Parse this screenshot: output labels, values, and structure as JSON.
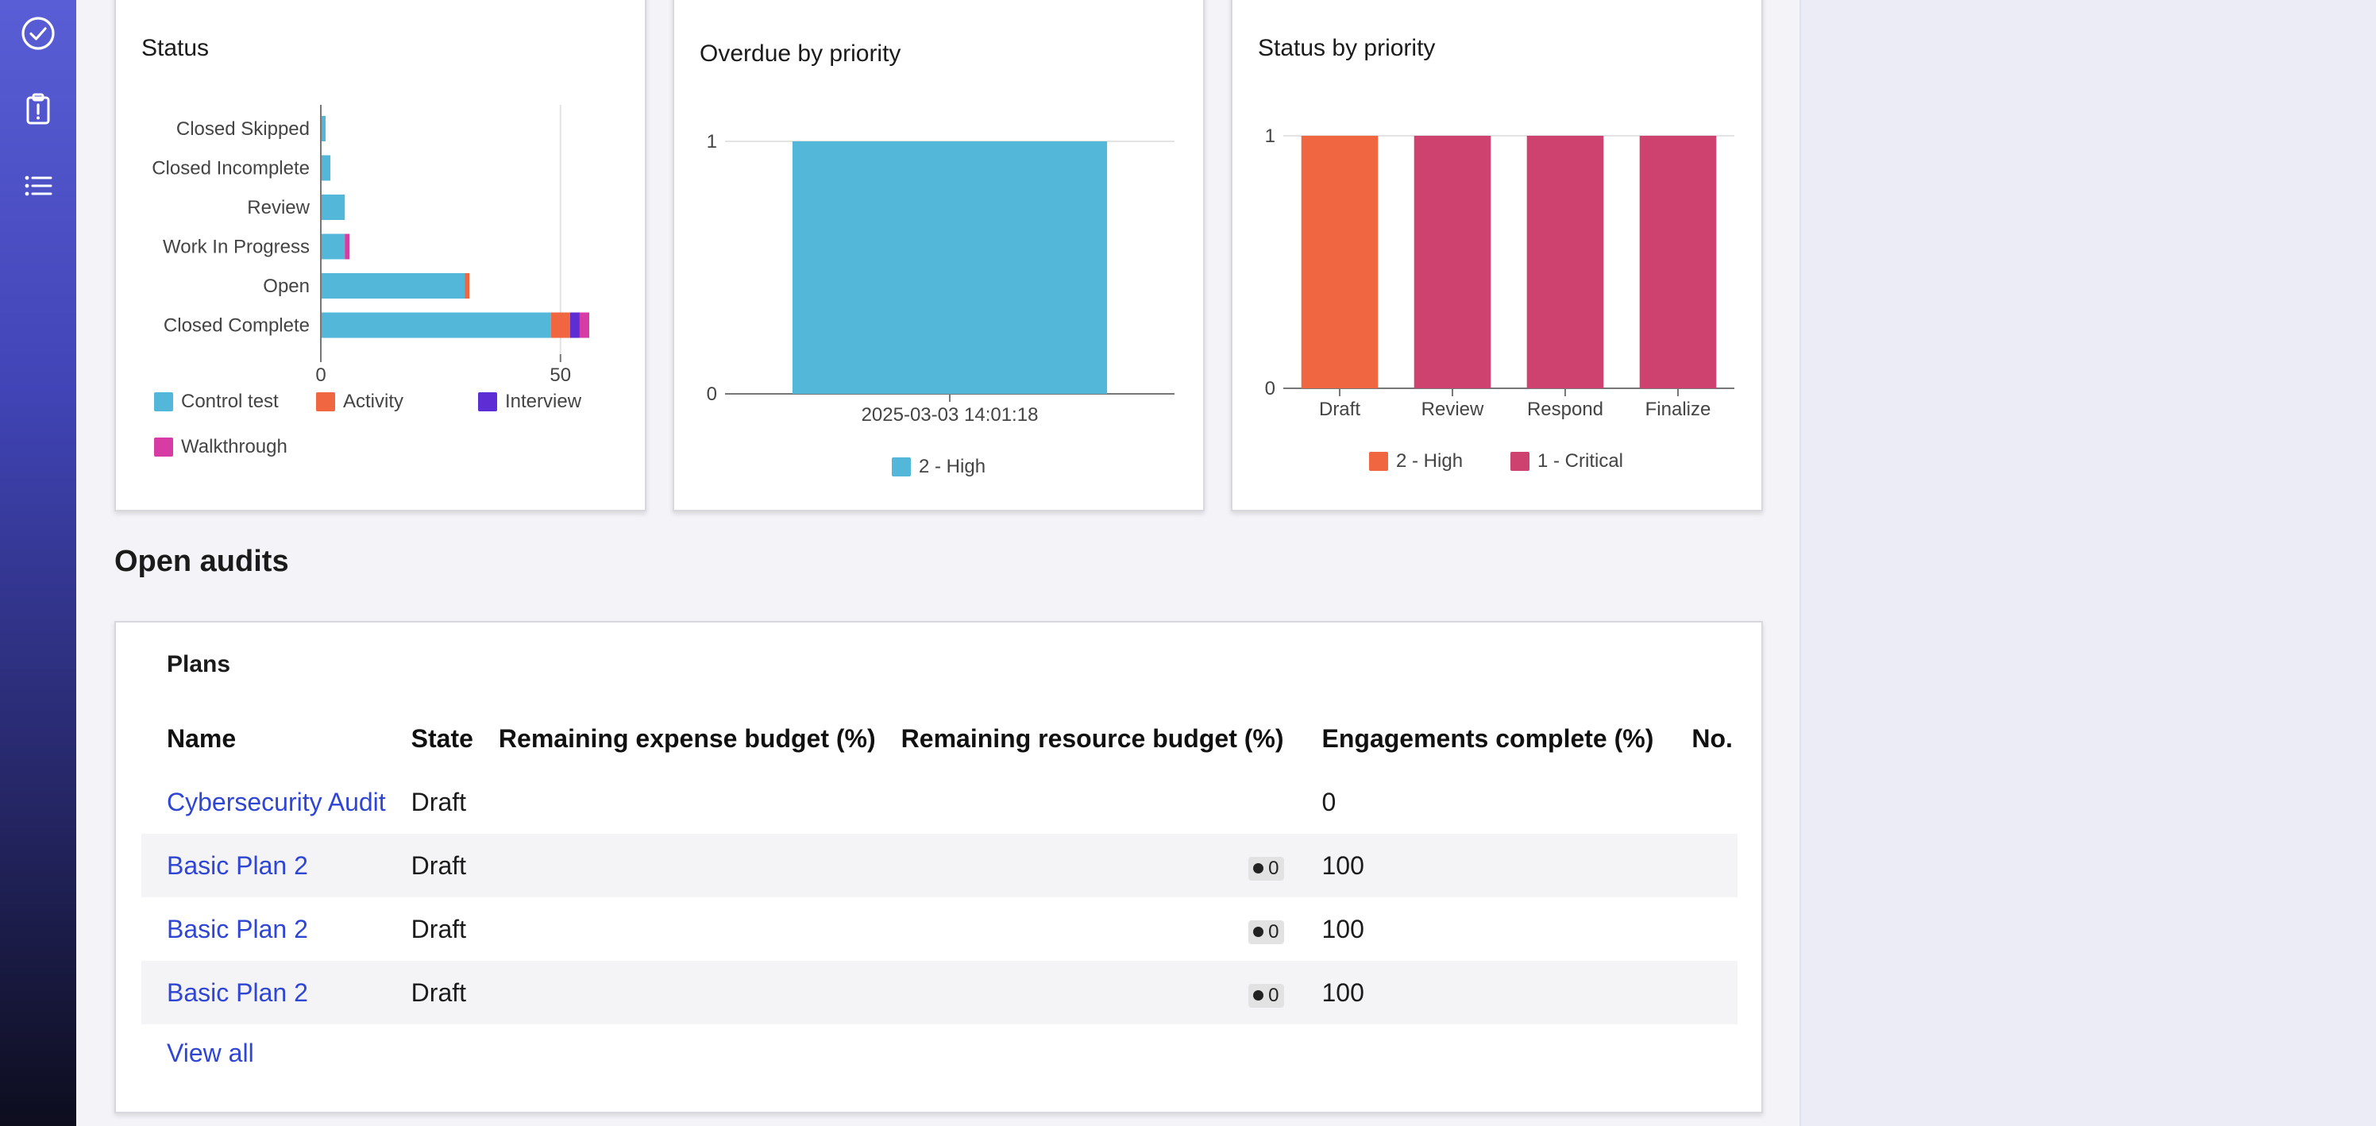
{
  "sidebar": {
    "items": [
      {
        "icon": "check-circle-icon"
      },
      {
        "icon": "clipboard-alert-icon"
      },
      {
        "icon": "list-icon"
      }
    ]
  },
  "colors": {
    "control_test": "#52b7d8",
    "activity": "#ef6641",
    "interview": "#5c2ed3",
    "walkthrough": "#d63ca3",
    "high": "#ef6641",
    "critical": "#cd426e",
    "link": "#2f45d4",
    "sidebar_top": "#5a5ed6",
    "sidebar_bottom": "#0d0d1e"
  },
  "cards": {
    "status": {
      "title": "Status"
    },
    "overdue": {
      "title": "Overdue by priority"
    },
    "status_priority": {
      "title": "Status by priority"
    }
  },
  "chart_data": [
    {
      "type": "bar",
      "orientation": "horizontal",
      "stacked": true,
      "title": "Status",
      "categories": [
        "Closed Skipped",
        "Closed Incomplete",
        "Review",
        "Work In Progress",
        "Open",
        "Closed Complete"
      ],
      "series": [
        {
          "name": "Control test",
          "values": [
            1,
            2,
            5,
            5,
            30,
            48
          ]
        },
        {
          "name": "Activity",
          "values": [
            0,
            0,
            0,
            0,
            1,
            4
          ]
        },
        {
          "name": "Interview",
          "values": [
            0,
            0,
            0,
            0,
            0,
            2
          ]
        },
        {
          "name": "Walkthrough",
          "values": [
            0,
            0,
            0,
            1,
            0,
            2
          ]
        }
      ],
      "xticks": [
        "0",
        "50"
      ],
      "xlim": [
        0,
        56
      ],
      "legend": "bottom"
    },
    {
      "type": "bar",
      "title": "Overdue by priority",
      "categories": [
        "2025-03-03 14:01:18"
      ],
      "series": [
        {
          "name": "2 - High",
          "values": [
            1
          ]
        }
      ],
      "yticks": [
        "0",
        "1"
      ],
      "ylim": [
        0,
        1
      ],
      "legend": "bottom"
    },
    {
      "type": "bar",
      "title": "Status by priority",
      "categories": [
        "Draft",
        "Review",
        "Respond",
        "Finalize"
      ],
      "series": [
        {
          "name": "2 - High",
          "values": [
            1,
            0,
            0,
            0
          ]
        },
        {
          "name": "1 - Critical",
          "values": [
            0,
            1,
            1,
            1
          ]
        }
      ],
      "yticks": [
        "0",
        "1"
      ],
      "ylim": [
        0,
        1
      ],
      "legend": "bottom"
    }
  ],
  "open_audits": {
    "heading": "Open audits",
    "plans": {
      "title": "Plans",
      "columns": [
        "Name",
        "State",
        "Remaining expense budget (%)",
        "Remaining resource budget (%)",
        "Engagements complete (%)",
        "No. of en"
      ],
      "rows": [
        {
          "name": "Cybersecurity Audit",
          "state": "Draft",
          "expense": "",
          "resource": "",
          "complete": "0"
        },
        {
          "name": "Basic Plan 2",
          "state": "Draft",
          "expense": "",
          "resource": "0",
          "complete": "100"
        },
        {
          "name": "Basic Plan 2",
          "state": "Draft",
          "expense": "",
          "resource": "0",
          "complete": "100"
        },
        {
          "name": "Basic Plan 2",
          "state": "Draft",
          "expense": "",
          "resource": "0",
          "complete": "100"
        }
      ],
      "view_all": "View all"
    }
  }
}
